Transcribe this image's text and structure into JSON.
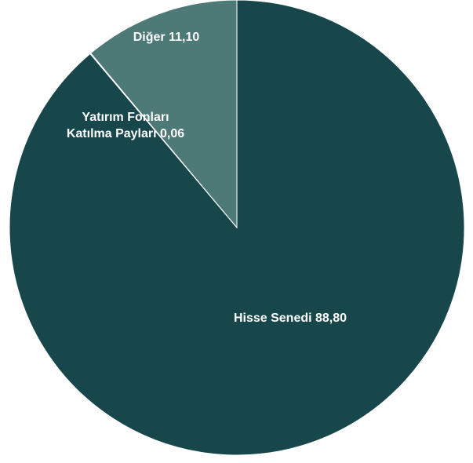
{
  "chart_data": {
    "type": "pie",
    "series": [
      {
        "values": [
          88.8,
          0.06,
          11.1
        ],
        "categories": [
          "Hisse Senedi",
          "Yatırım Fonları Katılma Payları",
          "Diğer"
        ]
      }
    ],
    "labels": [
      {
        "lines": [
          "Hisse Senedi 88,80"
        ]
      },
      {
        "lines": [
          "Yatırım Fonları",
          "Katılma Payları 0,06"
        ]
      },
      {
        "lines": [
          "Diğer 11,10"
        ]
      }
    ],
    "colors": [
      "#18474b",
      "#18474b",
      "#4d7977"
    ],
    "separator_color": "#ffffff",
    "start": "12 o'clock, clockwise",
    "legend": "none"
  }
}
